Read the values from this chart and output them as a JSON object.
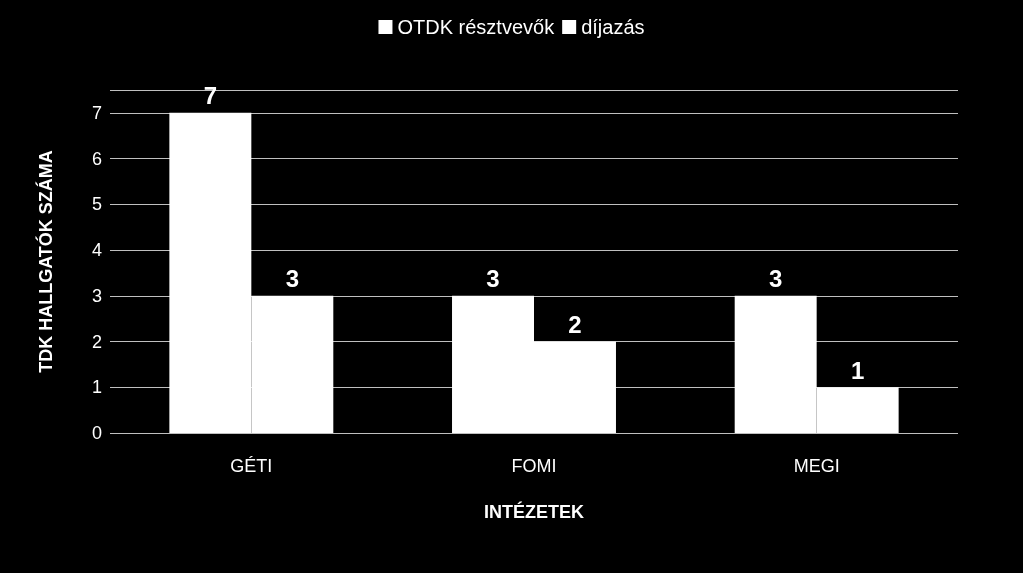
{
  "chart_data": {
    "type": "bar",
    "xlabel": "INTÉZETEK",
    "ylabel": "TDK HALLGATÓK SZÁMA",
    "categories": [
      "GÉTI",
      "FOMI",
      "MEGI"
    ],
    "series": [
      {
        "name": "OTDK résztvevők",
        "color": "#ffffff",
        "values": [
          7,
          3,
          3
        ]
      },
      {
        "name": "díjazás",
        "color": "#ffffff",
        "values": [
          3,
          2,
          1
        ]
      }
    ],
    "ylim": [
      0,
      7.5
    ],
    "yticks": [
      0,
      1,
      2,
      3,
      4,
      5,
      6,
      7,
      {
        "value": 7.5,
        "label": null
      }
    ],
    "grid": "y",
    "legend": "top",
    "data_labels": true
  }
}
